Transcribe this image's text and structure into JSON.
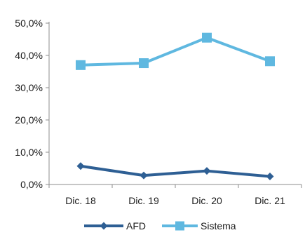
{
  "chart_data": {
    "type": "line",
    "categories": [
      "Dic. 18",
      "Dic. 19",
      "Dic. 20",
      "Dic. 21"
    ],
    "series": [
      {
        "name": "AFD",
        "values": [
          5.7,
          2.8,
          4.2,
          2.5
        ],
        "color": "#2e5f94",
        "marker": "diamond"
      },
      {
        "name": "Sistema",
        "values": [
          37.0,
          37.6,
          45.5,
          38.2
        ],
        "color": "#5fb8e0",
        "marker": "square"
      }
    ],
    "yticks": [
      "0,0%",
      "10,0%",
      "20,0%",
      "30,0%",
      "40,0%",
      "50,0%"
    ],
    "ylim": [
      0,
      50
    ],
    "grid": false,
    "legend_position": "bottom"
  }
}
